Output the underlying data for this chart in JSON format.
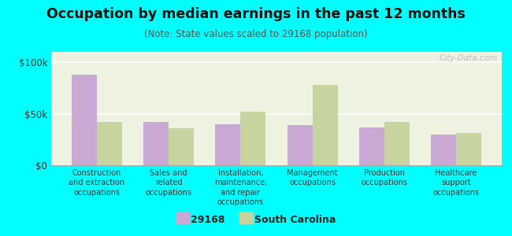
{
  "title": "Occupation by median earnings in the past 12 months",
  "subtitle": "(Note: State values scaled to 29168 population)",
  "categories": [
    "Construction\nand extraction\noccupations",
    "Sales and\nrelated\noccupations",
    "Installation,\nmaintenance,\nand repair\noccupations",
    "Management\noccupations",
    "Production\noccupations",
    "Healthcare\nsupport\noccupations"
  ],
  "values_29168": [
    88000,
    42000,
    40000,
    39000,
    37000,
    30000
  ],
  "values_sc": [
    42000,
    36000,
    52000,
    78000,
    42000,
    31000
  ],
  "color_29168": "#c9a8d4",
  "color_sc": "#c8d4a0",
  "background_plot": "#edf3e0",
  "background_fig": "#00ffff",
  "ylim": [
    0,
    110000
  ],
  "yticks": [
    0,
    50000,
    100000
  ],
  "ytick_labels": [
    "$0",
    "$50k",
    "$100k"
  ],
  "legend_label_1": "29168",
  "legend_label_2": "South Carolina",
  "watermark": "City-Data.com",
  "bar_width": 0.35
}
